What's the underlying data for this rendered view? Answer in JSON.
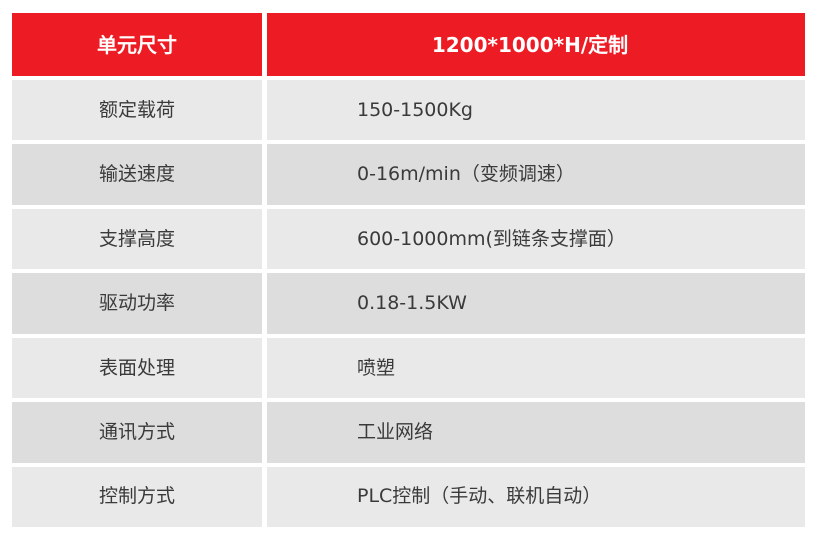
{
  "table": {
    "header": {
      "param": "单元尺寸",
      "value": "1200*1000*H/定制"
    },
    "rows": [
      {
        "param": "额定载荷",
        "value": "150-1500Kg"
      },
      {
        "param": "输送速度",
        "value": "0-16m/min（变频调速）"
      },
      {
        "param": "支撑高度",
        "value": "600-1000mm(到链条支撑面）"
      },
      {
        "param": "驱动功率",
        "value": "0.18-1.5KW"
      },
      {
        "param": "表面处理",
        "value": "喷塑"
      },
      {
        "param": "通讯方式",
        "value": "工业网络"
      },
      {
        "param": "控制方式",
        "value": "PLC控制（手动、联机自动）"
      }
    ],
    "colors": {
      "header_bg": "#ED1C24",
      "header_text": "#FFFFFF",
      "row_light": "#E9E9E9",
      "row_dark": "#DDDDDD",
      "body_text": "#3A3A3A",
      "page_bg": "#FFFFFF"
    }
  }
}
